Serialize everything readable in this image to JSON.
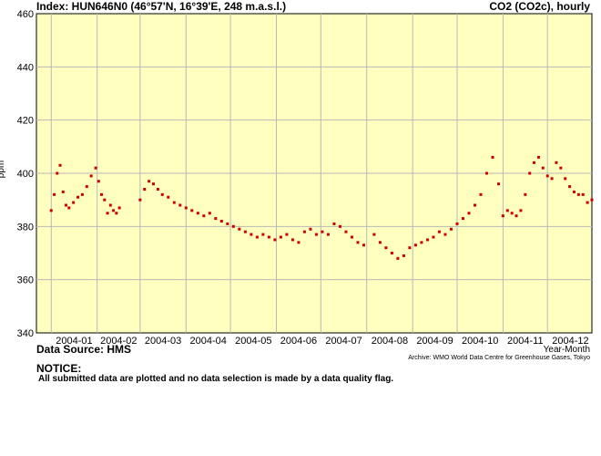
{
  "header": {
    "title_left": "Index: HUN646N0 (46°57'N, 16°39'E, 248 m.a.s.l.)",
    "title_right": "CO2 (CO2c), hourly"
  },
  "footer": {
    "source": "Data Source: HMS",
    "xlabel": "Year-Month",
    "archive": "Archive: WMO World Data Centre for Greenhouse Gases, Tokyo",
    "notice_heading": "NOTICE:",
    "notice_text": "All submitted data are plotted and no data selection is made by a data quality flag."
  },
  "chart_data": {
    "type": "scatter",
    "title": "CO2 (CO2c), hourly",
    "xlabel": "Year-Month",
    "ylabel": "ppm",
    "ylim": [
      340,
      460
    ],
    "yticks": [
      340,
      360,
      380,
      400,
      420,
      440,
      460
    ],
    "xlim": [
      "2003-12-22",
      "2004-12-31"
    ],
    "xticks": [
      "2004-01",
      "2004-02",
      "2004-03",
      "2004-04",
      "2004-05",
      "2004-06",
      "2004-07",
      "2004-08",
      "2004-09",
      "2004-10",
      "2004-11",
      "2004-12"
    ],
    "grid": true,
    "background_color": "#ffffc0",
    "marker_color": "#cc0000",
    "series": [
      {
        "x": [
          "2004-01-01",
          "2004-01-03",
          "2004-01-05",
          "2004-01-07",
          "2004-01-09",
          "2004-01-11",
          "2004-01-13",
          "2004-01-16",
          "2004-01-19",
          "2004-01-22",
          "2004-01-25",
          "2004-01-28",
          "2004-01-31",
          "2004-02-02",
          "2004-02-04",
          "2004-02-06",
          "2004-02-08",
          "2004-02-10",
          "2004-02-12",
          "2004-02-14",
          "2004-02-16",
          "2004-03-01",
          "2004-03-04",
          "2004-03-07",
          "2004-03-10",
          "2004-03-13",
          "2004-03-16",
          "2004-03-20",
          "2004-03-24",
          "2004-03-28",
          "2004-04-01",
          "2004-04-05",
          "2004-04-09",
          "2004-04-13",
          "2004-04-17",
          "2004-04-21",
          "2004-04-25",
          "2004-04-29",
          "2004-05-03",
          "2004-05-07",
          "2004-05-11",
          "2004-05-15",
          "2004-05-19",
          "2004-05-23",
          "2004-05-27",
          "2004-05-31",
          "2004-06-04",
          "2004-06-08",
          "2004-06-12",
          "2004-06-16",
          "2004-06-20",
          "2004-06-24",
          "2004-06-28",
          "2004-07-02",
          "2004-07-06",
          "2004-07-10",
          "2004-07-14",
          "2004-07-18",
          "2004-07-22",
          "2004-07-26",
          "2004-07-30",
          "2004-08-06",
          "2004-08-10",
          "2004-08-14",
          "2004-08-18",
          "2004-08-22",
          "2004-08-26",
          "2004-08-30",
          "2004-09-03",
          "2004-09-07",
          "2004-09-11",
          "2004-09-15",
          "2004-09-19",
          "2004-09-23",
          "2004-09-27",
          "2004-10-01",
          "2004-10-05",
          "2004-10-09",
          "2004-10-13",
          "2004-10-17",
          "2004-10-21",
          "2004-10-25",
          "2004-10-29",
          "2004-11-01",
          "2004-11-04",
          "2004-11-07",
          "2004-11-10",
          "2004-11-13",
          "2004-11-16",
          "2004-11-19",
          "2004-11-22",
          "2004-11-25",
          "2004-11-28",
          "2004-12-01",
          "2004-12-04",
          "2004-12-07",
          "2004-12-10",
          "2004-12-13",
          "2004-12-16",
          "2004-12-19",
          "2004-12-22",
          "2004-12-25",
          "2004-12-28",
          "2004-12-31"
        ],
        "y": [
          386,
          392,
          400,
          403,
          393,
          388,
          387,
          389,
          391,
          392,
          395,
          399,
          402,
          397,
          392,
          390,
          385,
          388,
          386,
          385,
          387,
          390,
          394,
          397,
          396,
          394,
          392,
          391,
          389,
          388,
          387,
          386,
          385,
          384,
          385,
          383,
          382,
          381,
          380,
          379,
          378,
          377,
          376,
          377,
          376,
          375,
          376,
          377,
          375,
          374,
          378,
          379,
          377,
          378,
          377,
          381,
          380,
          378,
          376,
          374,
          373,
          377,
          374,
          372,
          370,
          368,
          369,
          372,
          373,
          374,
          375,
          376,
          378,
          377,
          379,
          381,
          383,
          385,
          388,
          392,
          400,
          406,
          396,
          384,
          386,
          385,
          384,
          386,
          392,
          400,
          404,
          406,
          402,
          399,
          398,
          404,
          402,
          398,
          395,
          393,
          392,
          392,
          389,
          390
        ]
      }
    ]
  }
}
